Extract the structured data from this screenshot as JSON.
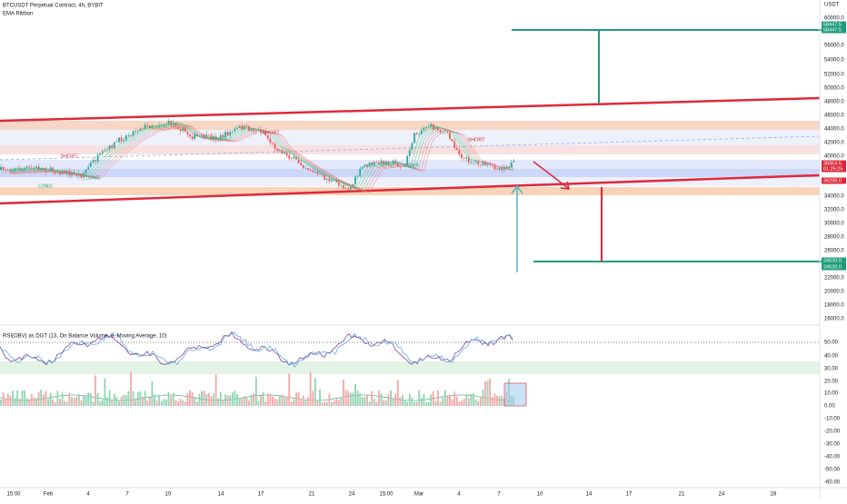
{
  "header": {
    "title": "BTCUSDT Perpetual Contract, 4h, BYBIT",
    "indicator": "EMA Ribbon"
  },
  "price_axis": {
    "unit": "USDT",
    "labels": [
      "60000.0",
      "56000.0",
      "54000.0",
      "52000.0",
      "50000.0",
      "48000.0",
      "46000.0",
      "44000.0",
      "42000.0",
      "40000.0",
      "34000.0",
      "32000.0",
      "30000.0",
      "28000.0",
      "26000.0",
      "22000.0",
      "20000.0",
      "18000.0",
      "16000.0"
    ]
  },
  "price_tags": [
    {
      "label": "58447.5",
      "kind": "green"
    },
    {
      "label": "58447.5",
      "kind": "green"
    },
    {
      "label": "38664.5",
      "kind": "red"
    },
    {
      "label": "01:25:25",
      "kind": "red"
    },
    {
      "label": "36295.0",
      "kind": "red"
    },
    {
      "label": "24520.0",
      "kind": "green"
    },
    {
      "label": "24520.0",
      "kind": "green"
    }
  ],
  "chart_labels": [
    "SHORT",
    "LONG",
    "LONG",
    "SHORT",
    "LONG",
    "SHORT"
  ],
  "oscillator": {
    "title": "RSI(OBV) as DGT (13, On Balance Volume, 2, Moving Average, 10)",
    "labels": [
      "50.00",
      "40.00",
      "30.00",
      "20.00",
      "10.00",
      "0.00",
      "-10.00",
      "-20.00",
      "-30.00",
      "-40.00",
      "-50.00",
      "-60.00"
    ]
  },
  "time_axis": {
    "labels": [
      "15:00",
      "Feb",
      "4",
      "7",
      "10",
      "14",
      "17",
      "21",
      "24",
      "15:00",
      "Mar",
      "4",
      "7",
      "10",
      "14",
      "17",
      "21",
      "24",
      "28"
    ]
  }
}
